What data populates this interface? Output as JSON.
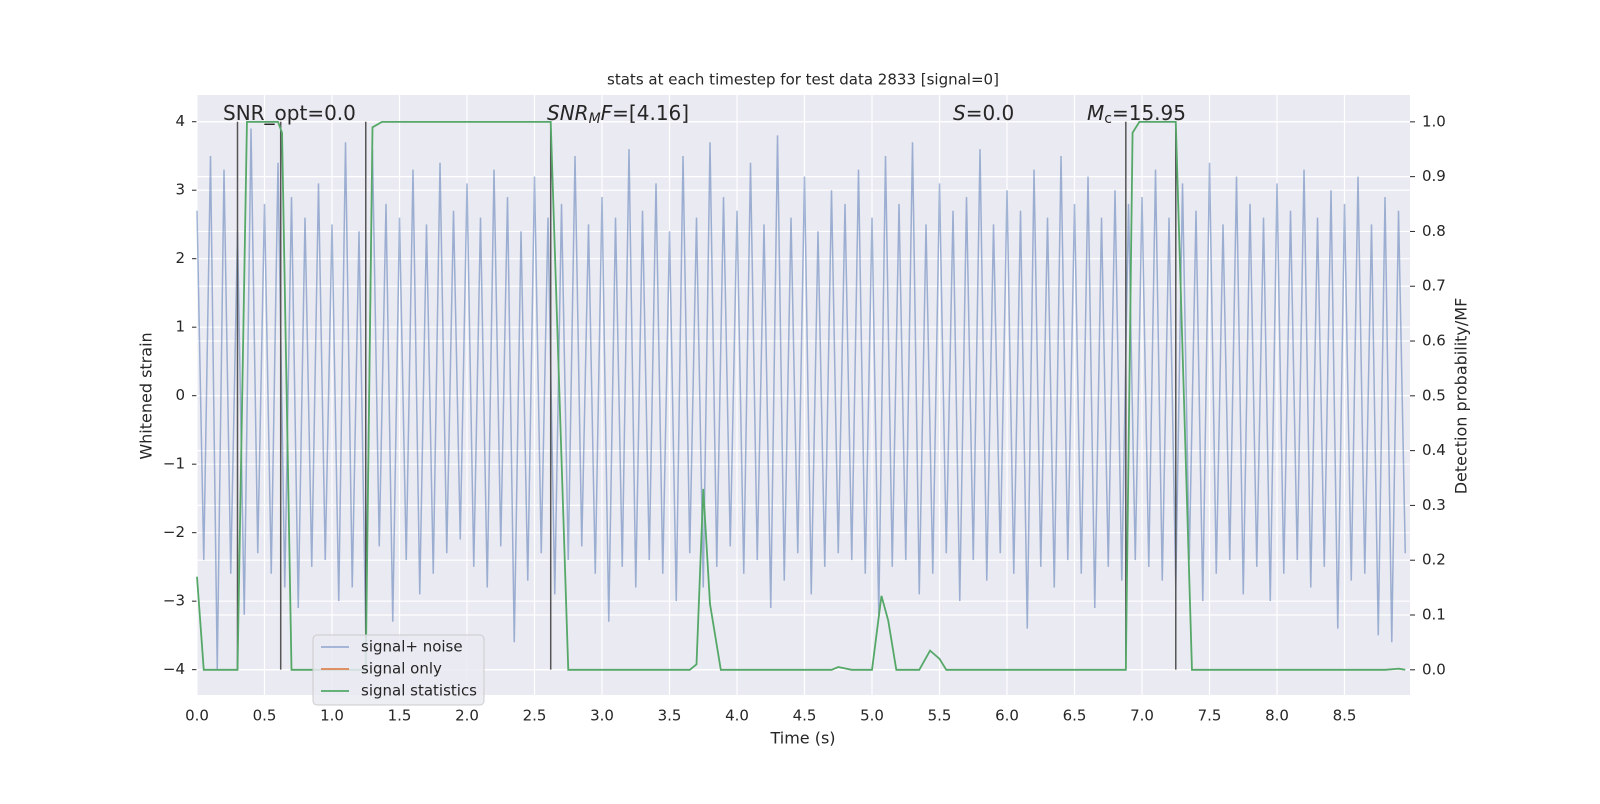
{
  "chart_data": {
    "type": "line",
    "title": "stats at each timestep for test data 2833 [signal=0]",
    "xlabel": "Time (s)",
    "ylabel": "Whitened strain",
    "y2label": "Detection probability/MF",
    "xlim": [
      0,
      8.985
    ],
    "ylim": [
      -4.37,
      4.39
    ],
    "y2lim": [
      -0.046,
      1.049
    ],
    "xticks": [
      {
        "value": 0,
        "label": "0.0"
      },
      {
        "value": 0.5,
        "label": "0.5"
      },
      {
        "value": 1,
        "label": "1.0"
      },
      {
        "value": 1.5,
        "label": "1.5"
      },
      {
        "value": 2,
        "label": "2.0"
      },
      {
        "value": 2.5,
        "label": "2.5"
      },
      {
        "value": 3,
        "label": "3.0"
      },
      {
        "value": 3.5,
        "label": "3.5"
      },
      {
        "value": 4,
        "label": "4.0"
      },
      {
        "value": 4.5,
        "label": "4.5"
      },
      {
        "value": 5,
        "label": "5.0"
      },
      {
        "value": 5.5,
        "label": "5.5"
      },
      {
        "value": 6,
        "label": "6.0"
      },
      {
        "value": 6.5,
        "label": "6.5"
      },
      {
        "value": 7,
        "label": "7.0"
      },
      {
        "value": 7.5,
        "label": "7.5"
      },
      {
        "value": 8,
        "label": "8.0"
      },
      {
        "value": 8.5,
        "label": "8.5"
      }
    ],
    "yticks": [
      {
        "value": -4,
        "label": "−4"
      },
      {
        "value": -3,
        "label": "−3"
      },
      {
        "value": -2,
        "label": "−2"
      },
      {
        "value": -1,
        "label": "−1"
      },
      0,
      1,
      2,
      3,
      4
    ],
    "y2ticks": [
      {
        "value": 0,
        "label": "0.0"
      },
      {
        "value": 0.1,
        "label": "0.1"
      },
      {
        "value": 0.2,
        "label": "0.2"
      },
      {
        "value": 0.3,
        "label": "0.3"
      },
      {
        "value": 0.4,
        "label": "0.4"
      },
      {
        "value": 0.5,
        "label": "0.5"
      },
      {
        "value": 0.6,
        "label": "0.6"
      },
      {
        "value": 0.7,
        "label": "0.7"
      },
      {
        "value": 0.8,
        "label": "0.8"
      },
      {
        "value": 0.9,
        "label": "0.9"
      },
      {
        "value": 1,
        "label": "1.0"
      }
    ],
    "grid": true,
    "legend": "lower left",
    "series": [
      {
        "name": "signal+ noise",
        "color": "#4c72b0",
        "opacity": 0.5,
        "x": [
          0,
          0.05,
          0.1,
          0.15,
          0.2,
          0.25,
          0.3,
          0.35,
          0.4,
          0.45,
          0.5,
          0.55,
          0.6,
          0.65,
          0.7,
          0.75,
          0.8,
          0.85,
          0.9,
          0.95,
          1,
          1.05,
          1.1,
          1.15,
          1.2,
          1.25,
          1.3,
          1.35,
          1.4,
          1.45,
          1.5,
          1.55,
          1.6,
          1.65,
          1.7,
          1.75,
          1.8,
          1.85,
          1.9,
          1.95,
          2,
          2.05,
          2.1,
          2.15,
          2.2,
          2.25,
          2.3,
          2.35,
          2.4,
          2.45,
          2.5,
          2.55,
          2.6,
          2.65,
          2.7,
          2.75,
          2.8,
          2.85,
          2.9,
          2.95,
          3,
          3.05,
          3.1,
          3.15,
          3.2,
          3.25,
          3.3,
          3.35,
          3.4,
          3.45,
          3.5,
          3.55,
          3.6,
          3.65,
          3.7,
          3.75,
          3.8,
          3.85,
          3.9,
          3.95,
          4,
          4.05,
          4.1,
          4.15,
          4.2,
          4.25,
          4.3,
          4.35,
          4.4,
          4.45,
          4.5,
          4.55,
          4.6,
          4.65,
          4.7,
          4.75,
          4.8,
          4.85,
          4.9,
          4.95,
          5,
          5.05,
          5.1,
          5.15,
          5.2,
          5.25,
          5.3,
          5.35,
          5.4,
          5.45,
          5.5,
          5.55,
          5.6,
          5.65,
          5.7,
          5.75,
          5.8,
          5.85,
          5.9,
          5.95,
          6,
          6.05,
          6.1,
          6.15,
          6.2,
          6.25,
          6.3,
          6.35,
          6.4,
          6.45,
          6.5,
          6.55,
          6.6,
          6.65,
          6.7,
          6.75,
          6.8,
          6.85,
          6.9,
          6.95,
          7,
          7.05,
          7.1,
          7.15,
          7.2,
          7.25,
          7.3,
          7.35,
          7.4,
          7.45,
          7.5,
          7.55,
          7.6,
          7.65,
          7.7,
          7.75,
          7.8,
          7.85,
          7.9,
          7.95,
          8,
          8.05,
          8.1,
          8.15,
          8.2,
          8.25,
          8.3,
          8.35,
          8.4,
          8.45,
          8.5,
          8.55,
          8.6,
          8.65,
          8.7,
          8.75,
          8.8,
          8.85,
          8.9,
          8.95
        ],
        "values": [
          2.7,
          -2.4,
          3.5,
          -4.0,
          3.3,
          -2.6,
          2.4,
          -3.2,
          3.9,
          -2.3,
          2.8,
          -2.6,
          3.4,
          -2.8,
          2.9,
          -3.1,
          2.6,
          -2.5,
          3.1,
          -2.4,
          2.5,
          -3.0,
          3.7,
          -2.8,
          2.4,
          -3.5,
          3.6,
          -2.2,
          2.8,
          -3.3,
          2.6,
          -2.4,
          3.3,
          -2.9,
          2.5,
          -2.6,
          3.4,
          -2.3,
          2.7,
          -2.1,
          3.1,
          -2.5,
          2.6,
          -2.8,
          3.3,
          -2.2,
          2.9,
          -3.6,
          2.4,
          -2.7,
          3.2,
          -2.3,
          2.6,
          -2.9,
          2.8,
          -2.4,
          3.5,
          -2.2,
          2.5,
          -2.6,
          2.9,
          -3.3,
          2.6,
          -2.5,
          3.6,
          -2.8,
          2.7,
          -2.4,
          3.1,
          -2.6,
          2.4,
          -3.0,
          3.5,
          -2.3,
          2.6,
          -2.8,
          3.7,
          -2.5,
          2.9,
          -2.2,
          2.7,
          -2.6,
          3.4,
          -2.4,
          2.5,
          -3.1,
          3.8,
          -2.7,
          2.6,
          -2.3,
          3.2,
          -2.9,
          2.4,
          -2.5,
          3.0,
          -2.3,
          2.8,
          -2.4,
          3.3,
          -2.6,
          2.6,
          -3.2,
          3.5,
          -2.5,
          2.8,
          -2.4,
          3.7,
          -2.9,
          2.5,
          -2.6,
          3.1,
          -2.3,
          2.7,
          -3.0,
          2.9,
          -2.4,
          3.6,
          -2.7,
          2.5,
          -2.3,
          3.0,
          -2.6,
          2.7,
          -3.4,
          3.3,
          -2.5,
          2.6,
          -2.8,
          3.5,
          -2.4,
          2.8,
          -2.6,
          3.2,
          -3.1,
          2.6,
          -2.5,
          3.0,
          -2.7,
          2.8,
          -2.4,
          2.9,
          -2.5,
          3.3,
          -2.7,
          2.6,
          -2.8,
          3.1,
          -2.4,
          2.7,
          -3.0,
          3.4,
          -2.6,
          2.5,
          -2.4,
          3.2,
          -2.9,
          2.8,
          -2.5,
          2.6,
          -3.0,
          3.1,
          -2.6,
          2.7,
          -2.4,
          3.3,
          -2.8,
          2.6,
          -2.5,
          3.0,
          -3.4,
          2.8,
          -2.7,
          3.2,
          -2.6,
          2.5,
          -3.5,
          2.9,
          -3.6,
          2.7,
          -2.3
        ]
      },
      {
        "name": "signal only",
        "color": "#dd8452",
        "x": [],
        "values": []
      },
      {
        "name": "signal statistics",
        "color": "#55a868",
        "axis": "y2",
        "x": [
          0,
          0.05,
          0.3,
          0.37,
          0.6,
          0.63,
          0.7,
          1.25,
          1.3,
          1.37,
          2.62,
          2.75,
          3.65,
          3.7,
          3.75,
          3.8,
          3.88,
          4.7,
          4.75,
          4.85,
          5.0,
          5.07,
          5.12,
          5.18,
          5.35,
          5.43,
          5.5,
          5.55,
          6.88,
          6.93,
          6.98,
          7.25,
          7.37,
          8.8,
          8.9,
          8.95
        ],
        "values": [
          0.17,
          0,
          0,
          1,
          1,
          0.98,
          0,
          0,
          0.99,
          1,
          1,
          0,
          0,
          0.01,
          0.33,
          0.12,
          0,
          0,
          0.005,
          0,
          0,
          0.135,
          0.09,
          0,
          0,
          0.035,
          0.02,
          0,
          0,
          0.98,
          1,
          1,
          0,
          0,
          0.002,
          0
        ]
      }
    ],
    "vlines": {
      "x": [
        0.3,
        0.62,
        1.25,
        2.62,
        6.88,
        7.25
      ],
      "span": [
        -4,
        4
      ]
    },
    "annotations": [
      [
        {
          "text": "SNR_opt=0.0"
        }
      ],
      [
        {
          "text": "SNR",
          "italic": true
        },
        {
          "text": "M",
          "italic": true,
          "sub": true
        },
        {
          "text": "F",
          "italic": true
        },
        {
          "text": "=[4.16]"
        }
      ],
      [
        {
          "text": "S",
          "italic": true
        },
        {
          "text": "=0.0"
        }
      ],
      [
        {
          "text": "M",
          "italic": true
        },
        {
          "text": "c",
          "sub": true
        },
        {
          "text": "=15.95"
        }
      ]
    ]
  }
}
